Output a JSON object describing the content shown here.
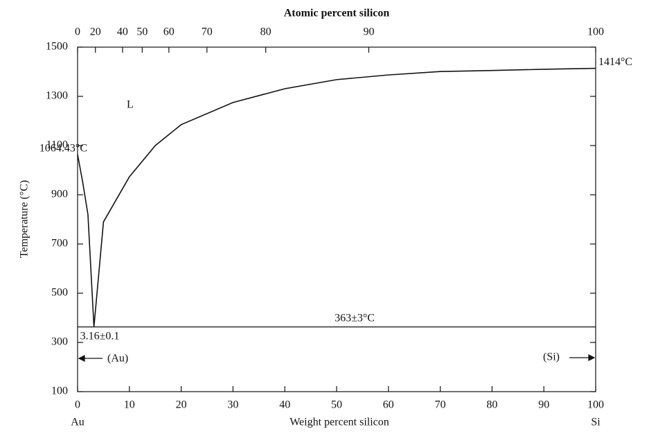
{
  "chart_data": {
    "type": "line",
    "title": "Atomic percent silicon",
    "xlabel": "Weight percent silicon",
    "ylabel": "Temperature (°C)",
    "x": [
      0,
      1,
      2,
      3.16,
      5,
      10,
      15,
      20,
      30,
      40,
      50,
      60,
      70,
      80,
      90,
      100
    ],
    "values": [
      1064.43,
      950,
      820,
      363,
      790,
      973,
      1100,
      1185,
      1275,
      1331,
      1368,
      1387,
      1401,
      1405,
      1410,
      1414
    ],
    "color": "#111111",
    "xlim": [
      0,
      100
    ],
    "xticks": [
      0,
      10,
      20,
      30,
      40,
      50,
      60,
      70,
      80,
      90,
      100
    ],
    "ylim": [
      100,
      1500
    ],
    "yticks": [
      100,
      300,
      500,
      700,
      900,
      1100,
      1300,
      1500
    ],
    "x2ticks": [
      {
        "value": 0,
        "label": "0"
      },
      {
        "value": 3.44,
        "label": "20"
      },
      {
        "value": 8.68,
        "label": "40"
      },
      {
        "value": 12.48,
        "label": "50"
      },
      {
        "value": 17.62,
        "label": "60"
      },
      {
        "value": 24.97,
        "label": "70"
      },
      {
        "value": 36.32,
        "label": "80"
      },
      {
        "value": 56.21,
        "label": "90"
      },
      {
        "value": 100,
        "label": "100"
      }
    ],
    "eutectic": {
      "value": 363,
      "label": "363±3°C"
    },
    "eutectic_composition": {
      "value": 3.16,
      "label": "3.16±0.1"
    },
    "melting_points": [
      {
        "x": 0,
        "value": 1064.43,
        "label": "1064.43°C"
      },
      {
        "x": 100,
        "value": 1414,
        "label": "1414°C"
      }
    ],
    "phase_labels": {
      "liquid": "L",
      "au": "(Au)",
      "si": "(Si)"
    },
    "end_labels": [
      "Au",
      "Si"
    ]
  }
}
